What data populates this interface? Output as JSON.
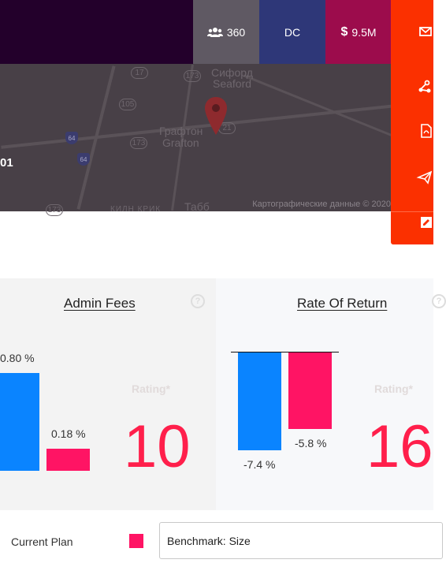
{
  "header": {
    "members": {
      "icon": "users-icon",
      "value": "360"
    },
    "state": {
      "value": "DC"
    },
    "assets": {
      "icon": "dollar-icon",
      "value": "9.5M"
    }
  },
  "map": {
    "code_label": "01",
    "place_labels": [
      "Сифорд",
      "Seaford",
      "Графтон",
      "Grafton",
      "Табб"
    ],
    "route_shields": [
      "17",
      "173",
      "105",
      "173",
      "173",
      "21"
    ],
    "interstate_shields": [
      "64",
      "64"
    ],
    "faded_label": "КИЛН КРИК",
    "attribution": "Картографические данные © 2020"
  },
  "rail": {
    "actions": [
      "mail-icon",
      "share-network-icon",
      "pdf-file-icon",
      "send-icon",
      "edit-icon"
    ]
  },
  "cards": [
    {
      "title": "Admin Fees",
      "current_label": "0.80 %",
      "benchmark_label": "0.18 %",
      "current_value": 0.8,
      "benchmark_value": 0.18,
      "rating_label": "Rating*",
      "rating": "10"
    },
    {
      "title": "Rate Of Return",
      "current_label": "-7.4 %",
      "benchmark_label": "-5.8 %",
      "current_value": -7.4,
      "benchmark_value": -5.8,
      "rating_label": "Rating*",
      "rating": "16"
    }
  ],
  "legend": {
    "current_plan_label": "Current Plan",
    "benchmark_select_value": "Benchmark: Size"
  },
  "colors": {
    "current": "#0a84ff",
    "benchmark": "#ff1464",
    "rating": "#ff1f4b",
    "rail": "#fb3000"
  }
}
